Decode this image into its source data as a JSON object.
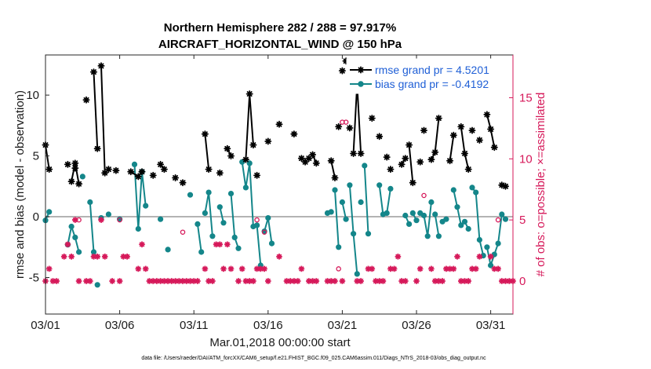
{
  "chart_data": {
    "type": "line",
    "title": "Northern Hemisphere 282 / 288 = 97.917%",
    "subtitle": "AIRCRAFT_HORIZONTAL_WIND @ 150 hPa",
    "xlabel": "Mar.01,2018 00:00:00 start",
    "ylabel": "rmse and bias (model - observation)",
    "y2label": "# of obs: o=possible; ×=assimilated",
    "footnote": "data file: /Users/raeder/DAI/ATM_forcXX/CAM6_setup/f.e21.FHIST_BGC.f09_025.CAM6assim.011/Diags_NTrS_2018-03/obs_diag_output.nc",
    "xlim": [
      0,
      31.5
    ],
    "ylim": [
      -8,
      13.3
    ],
    "y2lim": [
      -2.7,
      18.5
    ],
    "xticks": [
      0,
      5,
      10,
      15,
      20,
      25,
      30
    ],
    "xticklabels": [
      "03/01",
      "03/06",
      "03/11",
      "03/16",
      "03/21",
      "03/26",
      "03/31"
    ],
    "yticks": [
      -5,
      0,
      5,
      10
    ],
    "yticklabels": [
      "-5",
      "0",
      "5",
      "10"
    ],
    "y2ticks": [
      0,
      5,
      10,
      15
    ],
    "y2ticklabels": [
      "0",
      "5",
      "10",
      "15"
    ],
    "zero_line": 0,
    "colors": {
      "rmse": "#000000",
      "bias": "#14868a",
      "obs": "#d6195a",
      "legend_text": "#1f5fd6",
      "zero_line": "#b3b3b3"
    },
    "legend": {
      "position": "top-right",
      "entries": [
        "rmse grand pr = 4.5201",
        "bias grand pr = -0.4192"
      ]
    },
    "series": [
      {
        "name": "rmse",
        "segments": [
          [
            [
              0.0,
              5.9
            ],
            [
              0.25,
              3.9
            ]
          ],
          [
            [
              1.5,
              4.3
            ]
          ],
          [
            [
              1.75,
              2.9
            ],
            [
              2.0,
              4.4
            ],
            [
              2.25,
              2.7
            ]
          ],
          [
            [
              2.0,
              4.0
            ]
          ],
          [
            [
              2.75,
              9.6
            ]
          ],
          [
            [
              3.25,
              11.9
            ],
            [
              3.5,
              5.6
            ]
          ],
          [
            [
              3.75,
              12.4
            ],
            [
              4.0,
              3.6
            ],
            [
              4.25,
              3.9
            ]
          ],
          [
            [
              4.75,
              3.8
            ]
          ],
          [
            [
              5.75,
              3.7
            ],
            [
              6.25,
              3.3
            ],
            [
              6.5,
              3.7
            ]
          ],
          [
            [
              7.25,
              3.4
            ]
          ],
          [
            [
              7.75,
              4.3
            ],
            [
              8.0,
              3.9
            ]
          ],
          [
            [
              8.75,
              3.2
            ]
          ],
          [
            [
              9.25,
              2.8
            ]
          ],
          [
            [
              10.75,
              6.8
            ],
            [
              11.0,
              3.9
            ]
          ],
          [
            [
              11.75,
              3.6
            ]
          ],
          [
            [
              12.25,
              5.6
            ],
            [
              12.5,
              5.0
            ]
          ],
          [
            [
              13.5,
              4.7
            ],
            [
              13.75,
              10.1
            ],
            [
              14.0,
              5.9
            ]
          ],
          [
            [
              14.25,
              3.4
            ]
          ],
          [
            [
              15.0,
              6.2
            ]
          ],
          [
            [
              15.75,
              7.6
            ]
          ],
          [
            [
              16.75,
              6.8
            ]
          ],
          [
            [
              17.25,
              4.8
            ],
            [
              17.5,
              4.5
            ],
            [
              17.75,
              4.8
            ]
          ],
          [
            [
              18.0,
              5.1
            ],
            [
              18.25,
              4.4
            ]
          ],
          [
            [
              19.25,
              4.6
            ],
            [
              19.5,
              3.2
            ]
          ],
          [
            [
              19.75,
              7.4
            ]
          ],
          [
            [
              20.0,
              12.0
            ]
          ],
          [
            [
              20.25,
              12.8
            ]
          ],
          [
            [
              20.5,
              7.3
            ]
          ],
          [
            [
              20.75,
              5.2
            ],
            [
              21.0,
              10.9
            ],
            [
              21.25,
              5.2
            ]
          ],
          [
            [
              21.5,
              10.7
            ]
          ],
          [
            [
              22.0,
              8.1
            ]
          ],
          [
            [
              22.5,
              6.6
            ]
          ],
          [
            [
              23.0,
              4.9
            ]
          ],
          [
            [
              23.25,
              3.9
            ]
          ],
          [
            [
              24.0,
              4.3
            ],
            [
              24.25,
              4.8
            ]
          ],
          [
            [
              24.5,
              5.9
            ],
            [
              24.75,
              2.8
            ]
          ],
          [
            [
              25.25,
              4.5
            ]
          ],
          [
            [
              25.5,
              7.1
            ]
          ],
          [
            [
              26.0,
              4.7
            ],
            [
              26.25,
              5.3
            ],
            [
              26.5,
              8.1
            ]
          ],
          [
            [
              27.25,
              4.6
            ],
            [
              27.5,
              6.7
            ]
          ],
          [
            [
              28.0,
              7.4
            ],
            [
              28.25,
              5.2
            ],
            [
              28.5,
              3.9
            ]
          ],
          [
            [
              28.75,
              7.1
            ]
          ],
          [
            [
              29.25,
              6.3
            ]
          ],
          [
            [
              29.75,
              8.4
            ],
            [
              30.0,
              7.2
            ],
            [
              30.25,
              5.7
            ]
          ],
          [
            [
              30.75,
              2.6
            ],
            [
              31.0,
              2.5
            ]
          ]
        ]
      },
      {
        "name": "bias",
        "segments": [
          [
            [
              0.0,
              -0.3
            ],
            [
              0.25,
              0.4
            ]
          ],
          [
            [
              1.5,
              -2.3
            ],
            [
              1.75,
              -0.8
            ],
            [
              2.0,
              -1.7
            ],
            [
              2.25,
              -2.9
            ]
          ],
          [
            [
              2.5,
              3.3
            ]
          ],
          [
            [
              3.0,
              1.2
            ],
            [
              3.25,
              -2.9
            ]
          ],
          [
            [
              3.5,
              -5.6
            ]
          ],
          [
            [
              3.75,
              -0.1
            ]
          ],
          [
            [
              4.25,
              0.2
            ]
          ],
          [
            [
              5.0,
              -0.2
            ]
          ],
          [
            [
              6.0,
              4.3
            ],
            [
              6.25,
              -1.0
            ],
            [
              6.5,
              3.7
            ],
            [
              6.75,
              0.9
            ]
          ],
          [
            [
              7.75,
              -0.2
            ]
          ],
          [
            [
              8.25,
              -2.7
            ]
          ],
          [
            [
              9.75,
              1.8
            ]
          ],
          [
            [
              10.25,
              -0.6
            ],
            [
              10.5,
              -2.9
            ]
          ],
          [
            [
              10.75,
              0.3
            ],
            [
              11.0,
              2.0
            ],
            [
              11.25,
              -1.6
            ]
          ],
          [
            [
              11.75,
              0.8
            ],
            [
              12.0,
              -0.5
            ]
          ],
          [
            [
              12.5,
              1.9
            ],
            [
              12.75,
              -1.7
            ],
            [
              13.0,
              -2.6
            ]
          ],
          [
            [
              13.25,
              4.5
            ],
            [
              13.5,
              2.4
            ],
            [
              13.75,
              4.4
            ],
            [
              14.0,
              -0.8
            ]
          ],
          [
            [
              14.25,
              -0.7
            ],
            [
              14.5,
              -4.0
            ]
          ],
          [
            [
              14.75,
              -1.2
            ],
            [
              15.0,
              -0.1
            ],
            [
              15.25,
              -2.2
            ]
          ],
          [
            [
              19.0,
              0.3
            ],
            [
              19.25,
              0.4
            ]
          ],
          [
            [
              19.5,
              2.2
            ],
            [
              19.75,
              -2.5
            ]
          ],
          [
            [
              20.0,
              1.2
            ],
            [
              20.25,
              -0.2
            ]
          ],
          [
            [
              20.5,
              2.6
            ],
            [
              20.75,
              -1.4
            ],
            [
              21.0,
              -4.7
            ]
          ],
          [
            [
              21.25,
              1.2
            ]
          ],
          [
            [
              21.5,
              4.2
            ],
            [
              21.75,
              -1.4
            ]
          ],
          [
            [
              22.5,
              2.6
            ],
            [
              22.75,
              0.2
            ]
          ],
          [
            [
              23.0,
              0.3
            ],
            [
              23.25,
              2.3
            ]
          ],
          [
            [
              24.25,
              0.1
            ],
            [
              24.5,
              -0.6
            ]
          ],
          [
            [
              24.75,
              0.3
            ],
            [
              25.0,
              -0.3
            ]
          ],
          [
            [
              25.25,
              0.3
            ]
          ],
          [
            [
              25.5,
              0.1
            ],
            [
              25.75,
              -1.6
            ],
            [
              26.0,
              1.2
            ]
          ],
          [
            [
              26.25,
              0.2
            ],
            [
              26.5,
              -1.6
            ]
          ],
          [
            [
              26.75,
              -0.4
            ],
            [
              27.0,
              -0.2
            ]
          ],
          [
            [
              27.5,
              2.2
            ],
            [
              27.75,
              0.8
            ],
            [
              28.0,
              -0.7
            ],
            [
              28.25,
              -0.4
            ],
            [
              28.5,
              -1.0
            ]
          ],
          [
            [
              28.75,
              2.4
            ],
            [
              29.0,
              2.0
            ],
            [
              29.25,
              -1.9
            ],
            [
              29.5,
              -3.2
            ]
          ],
          [
            [
              29.75,
              -2.5
            ],
            [
              30.0,
              -4.0
            ],
            [
              30.25,
              -3.1
            ],
            [
              30.5,
              -2.2
            ],
            [
              30.75,
              0.2
            ],
            [
              31.0,
              -0.2
            ]
          ]
        ]
      }
    ],
    "obs_assimilated": [
      [
        0.0,
        0
      ],
      [
        0.25,
        1
      ],
      [
        0.5,
        0
      ],
      [
        0.75,
        0
      ],
      [
        1.25,
        2
      ],
      [
        1.5,
        3
      ],
      [
        1.75,
        2
      ],
      [
        2.0,
        5
      ],
      [
        2.25,
        0
      ],
      [
        2.75,
        0
      ],
      [
        3.0,
        0
      ],
      [
        3.25,
        2
      ],
      [
        3.5,
        2
      ],
      [
        3.75,
        5
      ],
      [
        4.0,
        2
      ],
      [
        4.5,
        0
      ],
      [
        5.0,
        0
      ],
      [
        5.25,
        2
      ],
      [
        5.5,
        2
      ],
      [
        6.25,
        1
      ],
      [
        6.5,
        3
      ],
      [
        6.75,
        1
      ],
      [
        7.0,
        0
      ],
      [
        7.25,
        0
      ],
      [
        7.5,
        0
      ],
      [
        7.75,
        0
      ],
      [
        8.0,
        0
      ],
      [
        8.25,
        0
      ],
      [
        8.5,
        0
      ],
      [
        8.75,
        0
      ],
      [
        9.0,
        0
      ],
      [
        9.25,
        0
      ],
      [
        9.5,
        0
      ],
      [
        9.75,
        0
      ],
      [
        10.0,
        0
      ],
      [
        10.25,
        0
      ],
      [
        10.75,
        1
      ],
      [
        11.0,
        0
      ],
      [
        11.25,
        0
      ],
      [
        11.5,
        3
      ],
      [
        11.75,
        3
      ],
      [
        12.0,
        1
      ],
      [
        12.25,
        3
      ],
      [
        12.5,
        1
      ],
      [
        13.0,
        0
      ],
      [
        13.25,
        1
      ],
      [
        13.5,
        0
      ],
      [
        13.75,
        0
      ],
      [
        14.0,
        0
      ],
      [
        14.25,
        1
      ],
      [
        14.5,
        1
      ],
      [
        14.75,
        1
      ],
      [
        15.0,
        0
      ],
      [
        15.75,
        2
      ],
      [
        16.25,
        0
      ],
      [
        16.5,
        0
      ],
      [
        16.75,
        0
      ],
      [
        17.0,
        0
      ],
      [
        17.25,
        1
      ],
      [
        17.75,
        0
      ],
      [
        18.0,
        0
      ],
      [
        18.25,
        0
      ],
      [
        19.0,
        0
      ],
      [
        19.25,
        0
      ],
      [
        19.5,
        0
      ],
      [
        20.0,
        0
      ],
      [
        21.0,
        0
      ],
      [
        21.25,
        0
      ],
      [
        21.75,
        1
      ],
      [
        22.0,
        1
      ],
      [
        22.25,
        0
      ],
      [
        22.5,
        0
      ],
      [
        22.75,
        0
      ],
      [
        23.25,
        1
      ],
      [
        23.5,
        1
      ],
      [
        23.75,
        2
      ],
      [
        24.0,
        0
      ],
      [
        24.25,
        0
      ],
      [
        25.0,
        0
      ],
      [
        25.25,
        1
      ],
      [
        26.0,
        1
      ],
      [
        26.25,
        0
      ],
      [
        26.5,
        0
      ],
      [
        26.75,
        0
      ],
      [
        27.0,
        1
      ],
      [
        27.25,
        1
      ],
      [
        27.5,
        1
      ],
      [
        27.75,
        2
      ],
      [
        28.0,
        0
      ],
      [
        28.25,
        0
      ],
      [
        28.5,
        0
      ],
      [
        28.75,
        1
      ],
      [
        29.0,
        1
      ],
      [
        29.25,
        2
      ],
      [
        30.0,
        2
      ],
      [
        30.25,
        1
      ],
      [
        30.5,
        1
      ],
      [
        30.75,
        0
      ],
      [
        31.0,
        0
      ],
      [
        31.25,
        0
      ],
      [
        31.5,
        0
      ]
    ],
    "obs_possible": [
      [
        2.25,
        5
      ],
      [
        5.0,
        5
      ],
      [
        9.25,
        4
      ],
      [
        14.25,
        5
      ],
      [
        14.75,
        4
      ],
      [
        19.75,
        1
      ],
      [
        20.0,
        13
      ],
      [
        20.25,
        13
      ],
      [
        25.5,
        7
      ],
      [
        30.5,
        5
      ]
    ]
  }
}
